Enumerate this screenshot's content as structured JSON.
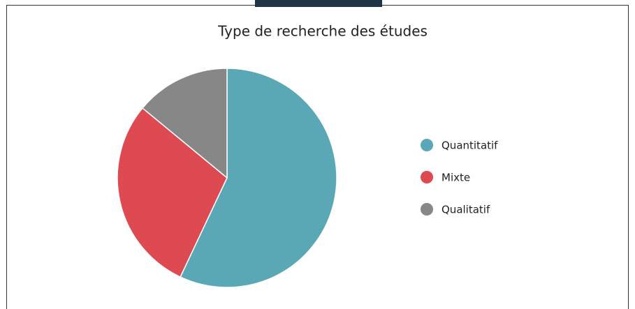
{
  "chart_data": {
    "type": "pie",
    "title": "Type de recherche des études",
    "categories": [
      "Quantitatif",
      "Mixte",
      "Qualitatif"
    ],
    "values": [
      57,
      29,
      14
    ],
    "colors": [
      "#5aa8b5",
      "#de4a52",
      "#878787"
    ],
    "legend": "right"
  }
}
